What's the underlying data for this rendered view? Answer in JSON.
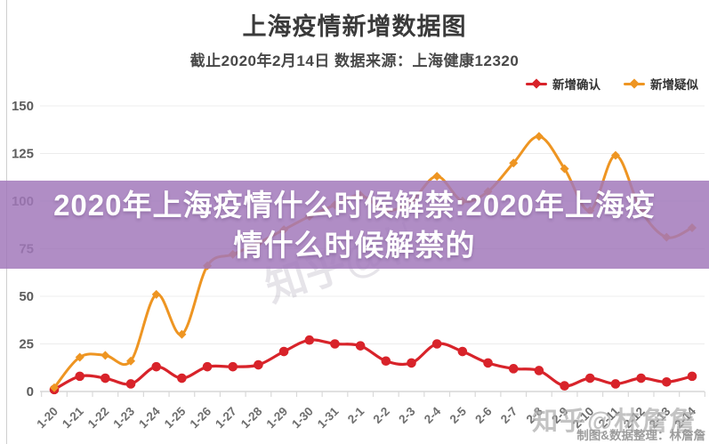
{
  "header": {
    "title": "上海疫情新增数据图",
    "subtitle": "截止2020年2月14日 数据来源：上海健康12320"
  },
  "legend": [
    {
      "label": "新增确认",
      "color": "#d8232a"
    },
    {
      "label": "新增疑似",
      "color": "#ee9522"
    }
  ],
  "overlay": {
    "line1": "2020年上海疫情什么时候解禁:2020年上海疫",
    "line2": "情什么时候解禁的",
    "bg_color": "#a177ba",
    "text_color": "#ffffff"
  },
  "watermark": {
    "brand": "知乎@林詹詹",
    "credit": "制图&数据整理：林詹詹"
  },
  "chart_data": {
    "type": "line",
    "title": "上海疫情新增数据图",
    "subtitle": "截止2020年2月14日 数据来源：上海健康12320",
    "categories": [
      "1-20",
      "1-21",
      "1-22",
      "1-23",
      "1-24",
      "1-25",
      "1-26",
      "1-27",
      "1-28",
      "1-29",
      "1-30",
      "1-31",
      "2-1",
      "2-2",
      "2-3",
      "2-4",
      "2-5",
      "2-6",
      "2-7",
      "2-8",
      "2-9",
      "2-10",
      "2-11",
      "2-12",
      "2-13",
      "2-14"
    ],
    "series": [
      {
        "name": "新增确认",
        "color": "#d8232a",
        "marker": "circle",
        "values": [
          1,
          8,
          7,
          4,
          13,
          7,
          13,
          13,
          14,
          21,
          27,
          25,
          24,
          16,
          15,
          25,
          21,
          15,
          12,
          11,
          3,
          7,
          4,
          7,
          5,
          8
        ]
      },
      {
        "name": "新增疑似",
        "color": "#ee9522",
        "marker": "diamond",
        "values": [
          2,
          18,
          19,
          16,
          51,
          30,
          66,
          72,
          78,
          85,
          92,
          98,
          103,
          95,
          100,
          113,
          100,
          105,
          120,
          134,
          117,
          95,
          124,
          95,
          81,
          86
        ]
      }
    ],
    "ylim": [
      0,
      150
    ],
    "yticks": [
      0,
      25,
      50,
      75,
      100,
      125,
      150
    ],
    "xlabel": "",
    "ylabel": "",
    "grid": true,
    "legend_position": "top-right",
    "grid_color": "#ececec",
    "axis_color": "#d6d6d6",
    "tick_label_color": "#6e6e6e"
  }
}
